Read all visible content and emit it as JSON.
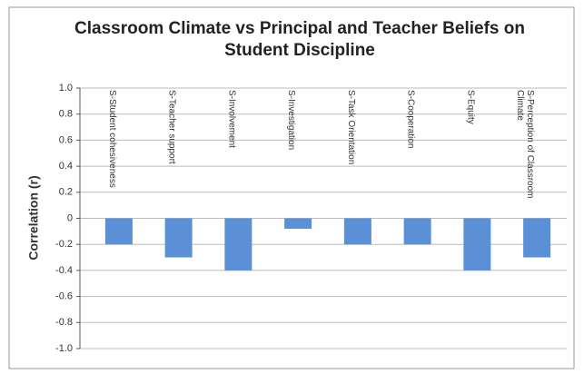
{
  "chart_data": {
    "type": "bar",
    "title": "Classroom Climate vs Principal and Teacher Beliefs on Student Discipline",
    "y_label": "Correlation (r)",
    "categories": [
      "S-Student cohesiveness",
      "S-Teacher support",
      "S-Involvement",
      "S-Investigation",
      "S-Task Orientation",
      "S-Cooperation",
      "S-Equity",
      "S-Perception of Classroom Climate"
    ],
    "values": [
      -0.2,
      -0.3,
      -0.4,
      -0.08,
      -0.2,
      -0.2,
      -0.4,
      -0.3
    ],
    "color": "#5b8fd6",
    "ylim": [
      -1,
      1
    ],
    "yticks": [
      {
        "value": 1,
        "label": "1.0"
      },
      0.8,
      0.6,
      0.4,
      0.2,
      0,
      -0.2,
      -0.4,
      -0.6,
      -0.8,
      {
        "value": -1,
        "label": "-1.0"
      }
    ],
    "grid": true
  }
}
